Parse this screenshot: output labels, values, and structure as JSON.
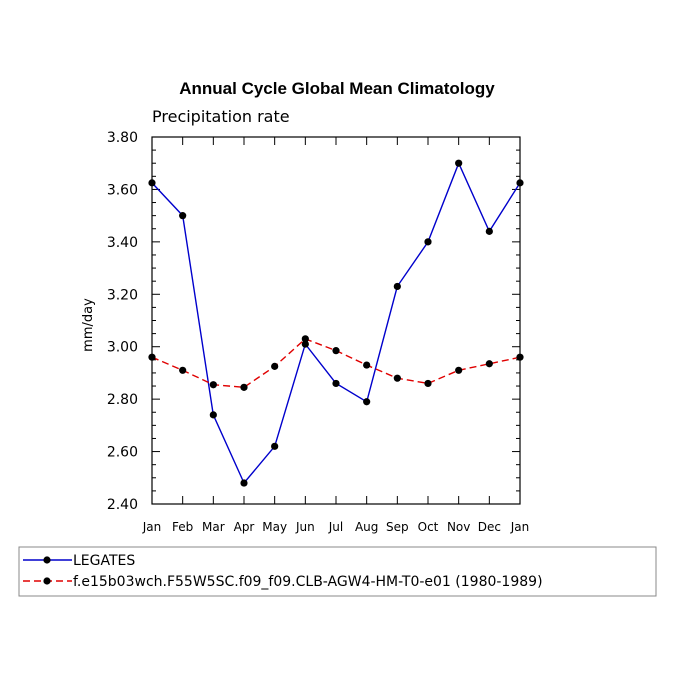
{
  "chart_data": {
    "type": "line",
    "title": "Annual Cycle Global Mean Climatology",
    "subtitle": "Precipitation rate",
    "ylabel": "mm/day",
    "xlabel": "",
    "categories": [
      "Jan",
      "Feb",
      "Mar",
      "Apr",
      "May",
      "Jun",
      "Jul",
      "Aug",
      "Sep",
      "Oct",
      "Nov",
      "Dec",
      "Jan"
    ],
    "ylim": [
      2.4,
      3.8
    ],
    "yticks": [
      "2.40",
      "2.60",
      "2.80",
      "3.00",
      "3.20",
      "3.40",
      "3.60",
      "3.80"
    ],
    "legend_position": "bottom",
    "grid": false,
    "series": [
      {
        "name": "LEGATES",
        "color": "#0000cc",
        "dash": "solid",
        "values": [
          3.625,
          3.5,
          2.74,
          2.48,
          2.62,
          3.01,
          2.86,
          2.79,
          3.23,
          3.4,
          3.7,
          3.44,
          3.625
        ]
      },
      {
        "name": "f.e15b03wch.F55W5SC.f09_f09.CLB-AGW4-HM-T0-e01 (1980-1989)",
        "color": "#e00000",
        "dash": "dashed",
        "values": [
          2.96,
          2.91,
          2.855,
          2.845,
          2.925,
          3.03,
          2.985,
          2.93,
          2.88,
          2.86,
          2.91,
          2.935,
          2.96
        ]
      }
    ]
  }
}
